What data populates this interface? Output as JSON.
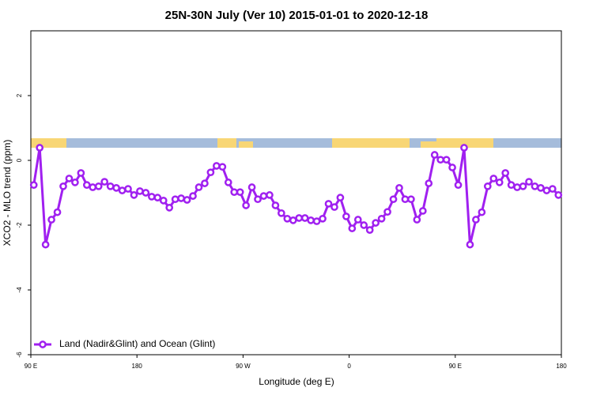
{
  "chart_data": {
    "type": "line",
    "title": "25N-30N July (Ver 10)   2015-01-01 to 2020-12-18",
    "x_label": "Longitude (deg E)",
    "y_label": "XCO2 - MLO trend (ppm)",
    "x": [
      92.5,
      97.5,
      102.5,
      107.5,
      112.5,
      117.5,
      122.5,
      127.5,
      132.5,
      137.5,
      142.5,
      147.5,
      152.5,
      157.5,
      162.5,
      167.5,
      172.5,
      177.5,
      182.5,
      187.5,
      192.5,
      197.5,
      202.5,
      207.5,
      212.5,
      217.5,
      222.5,
      227.5,
      232.5,
      237.5,
      242.5,
      247.5,
      252.5,
      257.5,
      262.5,
      267.5,
      272.5,
      277.5,
      282.5,
      287.5,
      292.5,
      297.5,
      302.5,
      307.5,
      312.5,
      317.5,
      322.5,
      327.5,
      332.5,
      337.5,
      342.5,
      347.5,
      352.5,
      357.5,
      362.5,
      367.5,
      372.5,
      377.5,
      382.5,
      387.5,
      392.5,
      397.5,
      402.5,
      407.5,
      412.5,
      417.5,
      422.5,
      427.5,
      432.5,
      437.5,
      442.5,
      447.5,
      452.5,
      457.5,
      462.5,
      467.5,
      472.5,
      477.5,
      482.5,
      487.5,
      492.5,
      497.5,
      502.5,
      507.5,
      512.5,
      517.5,
      522.5,
      527.5,
      532.5,
      537.5
    ],
    "series": [
      {
        "name": "Land (Nadir&Glint) and Ocean (Glint)",
        "color": "#a020f0",
        "values": [
          -0.76,
          0.39,
          -2.6,
          -1.83,
          -1.6,
          -0.8,
          -0.56,
          -0.68,
          -0.39,
          -0.76,
          -0.83,
          -0.8,
          -0.66,
          -0.8,
          -0.85,
          -0.93,
          -0.88,
          -1.07,
          -0.95,
          -1.0,
          -1.12,
          -1.15,
          -1.24,
          -1.46,
          -1.2,
          -1.17,
          -1.22,
          -1.1,
          -0.83,
          -0.71,
          -0.37,
          -0.17,
          -0.2,
          -0.68,
          -0.98,
          -0.98,
          -1.39,
          -0.83,
          -1.2,
          -1.1,
          -1.07,
          -1.39,
          -1.63,
          -1.8,
          -1.85,
          -1.78,
          -1.78,
          -1.85,
          -1.88,
          -1.8,
          -1.34,
          -1.44,
          -1.15,
          -1.73,
          -2.1,
          -1.83,
          -2.0,
          -2.15,
          -1.93,
          -1.8,
          -1.59,
          -1.2,
          -0.85,
          -1.2,
          -1.2,
          -1.83,
          -1.56,
          -0.71,
          0.17,
          0.02,
          0.02,
          -0.22,
          -0.76,
          0.39,
          -2.6,
          -1.83,
          -1.6,
          -0.8,
          -0.56,
          -0.68,
          -0.39,
          -0.76,
          -0.83,
          -0.8,
          -0.66,
          -0.8,
          -0.85,
          -0.93,
          -0.88,
          -1.07
        ]
      }
    ],
    "xlim": [
      90,
      540
    ],
    "xticks": [
      {
        "value": 90,
        "label": "90 E"
      },
      180,
      {
        "value": 270,
        "label": "90 W"
      },
      {
        "value": 360,
        "label": "0"
      },
      {
        "value": 450,
        "label": "90 E"
      },
      {
        "value": 540,
        "label": "180"
      }
    ],
    "ylim": [
      -6,
      4
    ],
    "yticks": [
      -6,
      -4,
      -2,
      0,
      2
    ],
    "legend": "bottom-left"
  }
}
